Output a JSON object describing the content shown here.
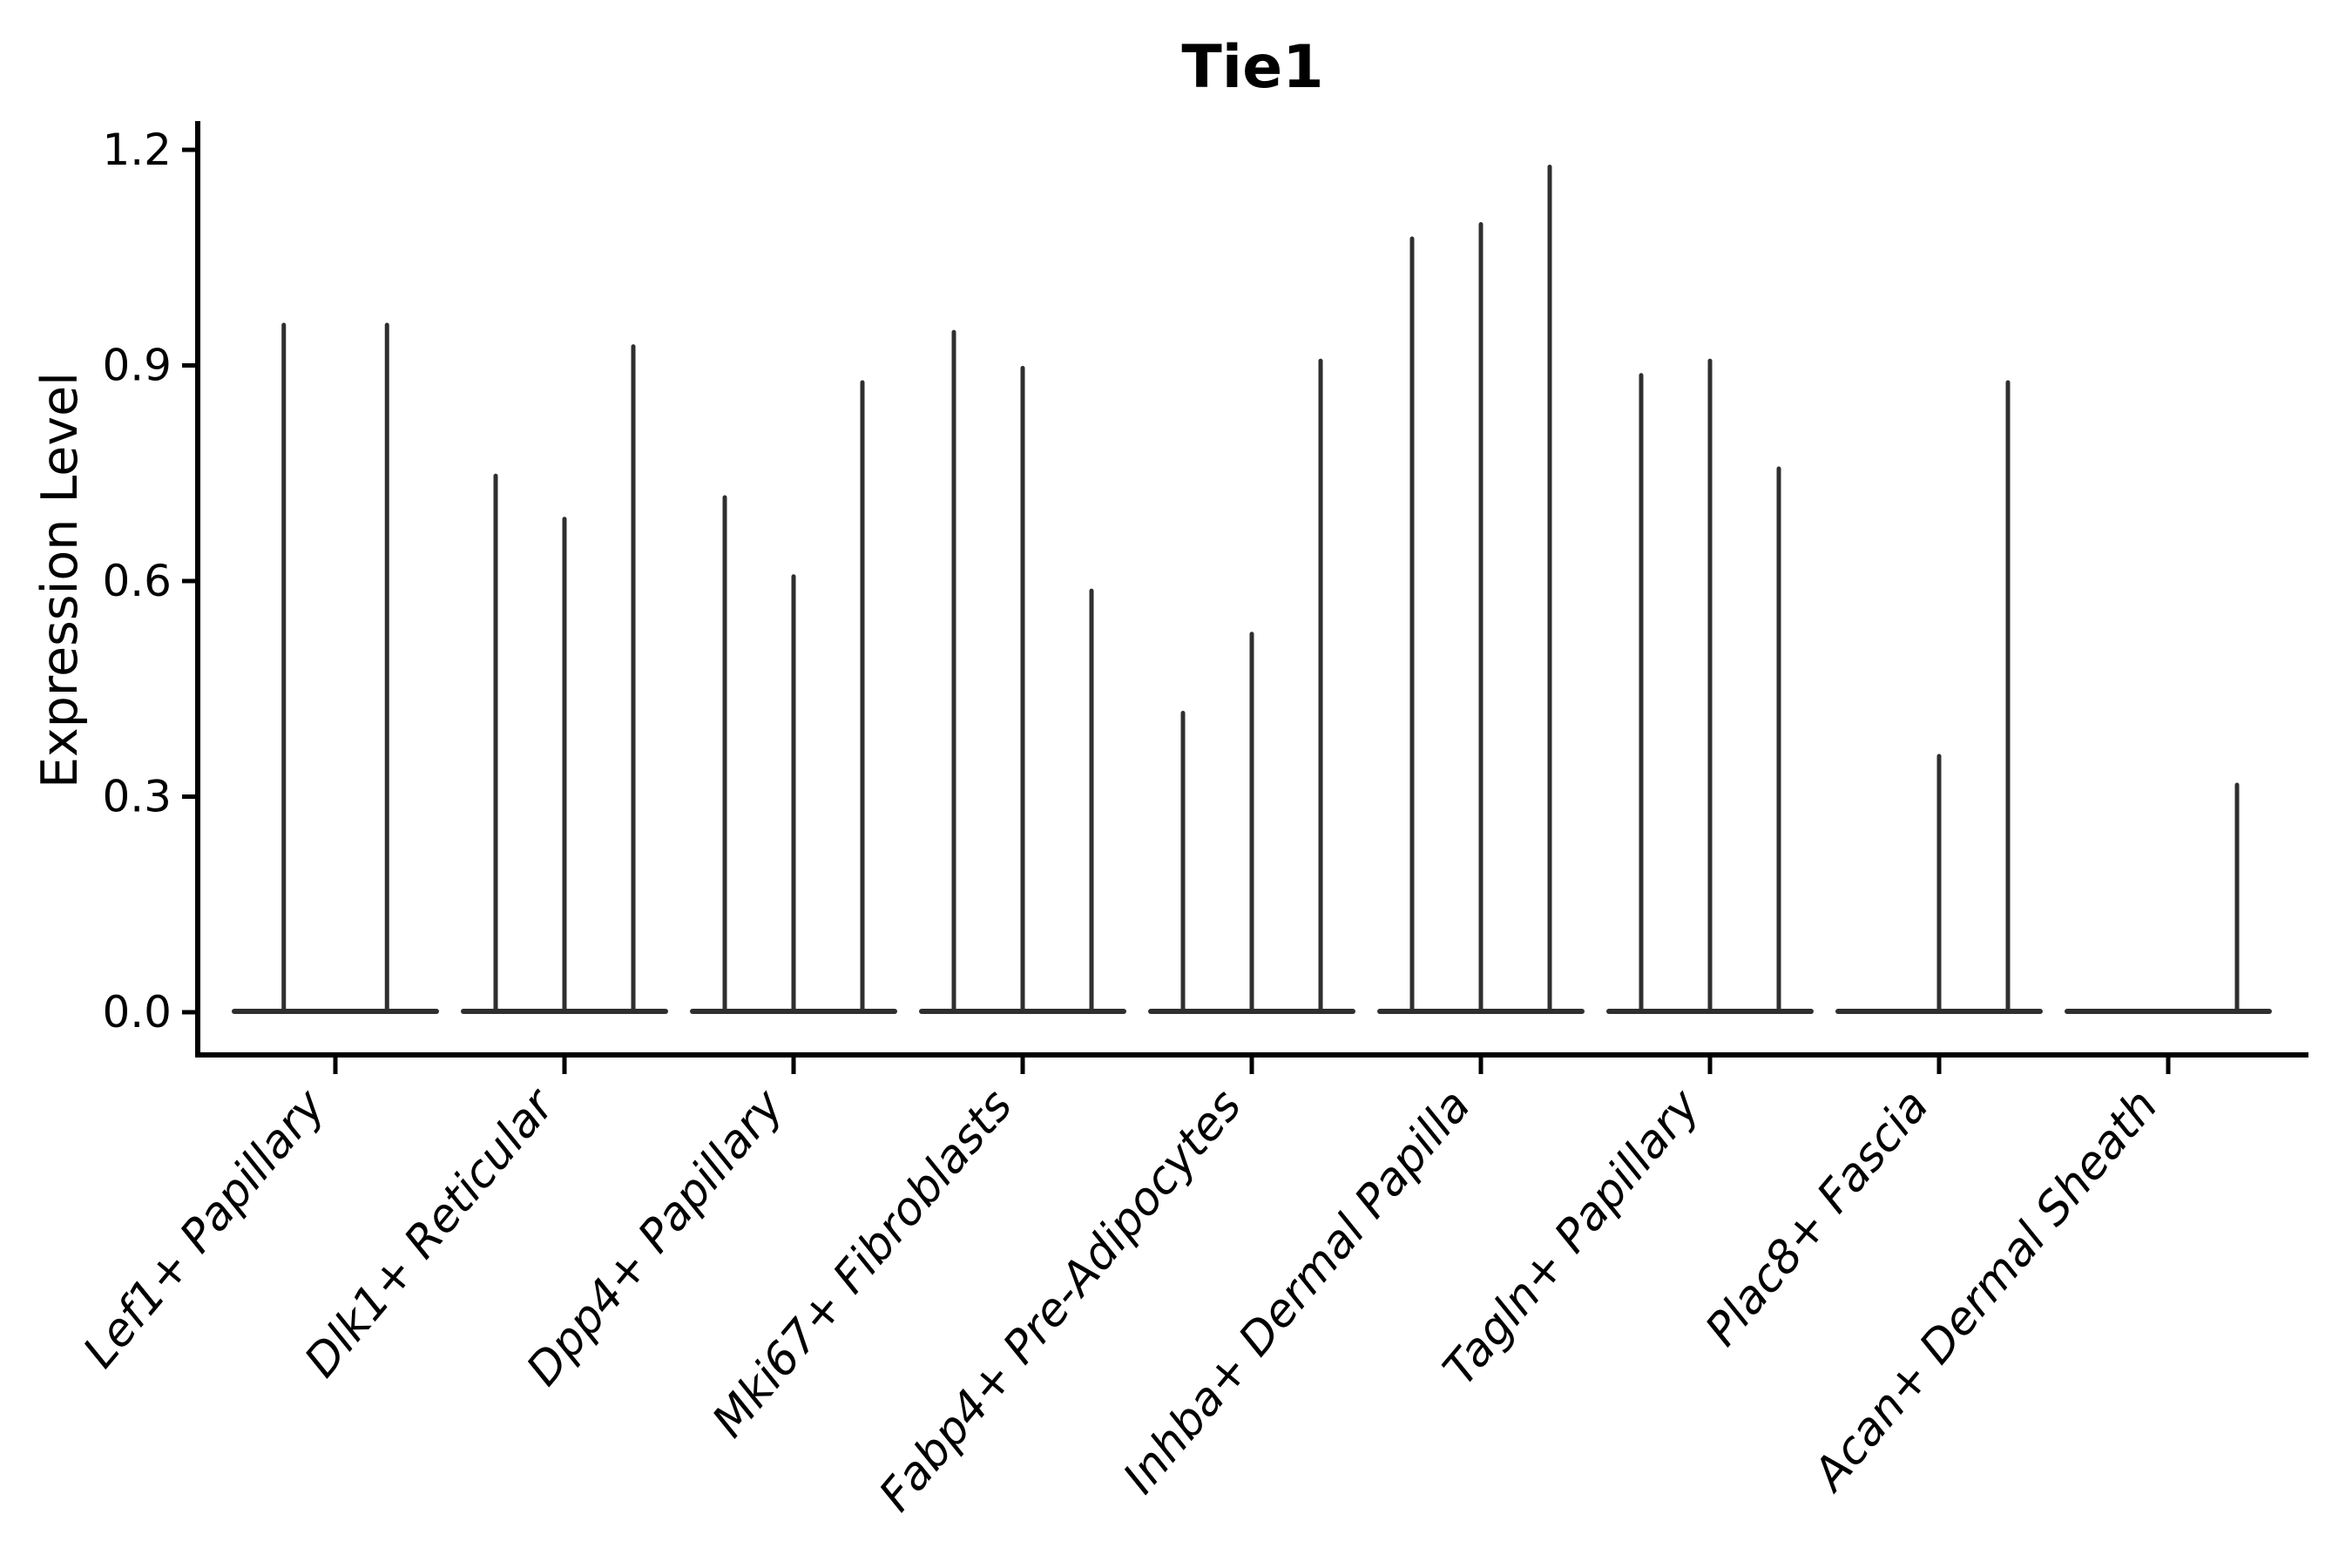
{
  "chart_data": {
    "type": "violin",
    "title": "Tie1",
    "xlabel": "",
    "ylabel": "Expression Level",
    "ylim": [
      -0.06,
      1.24
    ],
    "yticks": [
      0.0,
      0.3,
      0.6,
      0.9,
      1.2
    ],
    "ytick_labels": [
      "0.0",
      "0.3",
      "0.6",
      "0.9",
      "1.2"
    ],
    "grid": false,
    "legend": false,
    "categories": [
      "Lef1+ Papillary",
      "Dlk1+ Reticular",
      "Dpp4+ Papillary",
      "Mki67+ Fibroblasts",
      "Fabp4+ Pre-Adipocytes",
      "Inhba+ Dermal Papilla",
      "Tagln+ Papillary",
      "Plac8+ Fascia",
      "Acan+ Dermal Sheath"
    ],
    "violins": [
      {
        "category": "Lef1+ Papillary",
        "maxima": [
          0.96,
          0.96
        ]
      },
      {
        "category": "Dlk1+ Reticular",
        "maxima": [
          0.75,
          0.69,
          0.93
        ]
      },
      {
        "category": "Dpp4+ Papillary",
        "maxima": [
          0.72,
          0.61,
          0.88
        ]
      },
      {
        "category": "Mki67+ Fibroblasts",
        "maxima": [
          0.95,
          0.9,
          0.59
        ]
      },
      {
        "category": "Fabp4+ Pre-Adipocytes",
        "maxima": [
          0.42,
          0.53,
          0.91
        ]
      },
      {
        "category": "Inhba+ Dermal Papilla",
        "maxima": [
          1.08,
          1.1,
          1.18
        ]
      },
      {
        "category": "Tagln+ Papillary",
        "maxima": [
          0.89,
          0.91,
          0.76
        ]
      },
      {
        "category": "Plac8+ Fascia",
        "maxima": [
          0.0,
          0.36,
          0.88
        ]
      },
      {
        "category": "Acan+ Dermal Sheath",
        "maxima": [
          0.0,
          0.0,
          0.32
        ]
      }
    ],
    "violin_shape_note": "each violin is flat/wide at expression 0 with a thin spike up to its maximum",
    "colors": {
      "violin_stroke": "#2f2f2f",
      "axis": "#000000",
      "text": "#000000",
      "background": "#ffffff"
    }
  }
}
